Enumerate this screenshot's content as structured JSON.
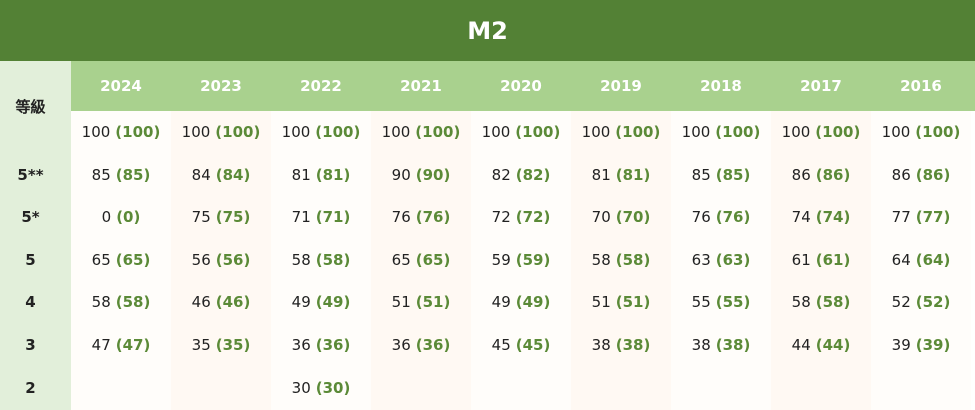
{
  "title": "M2",
  "grade_header": "等級",
  "years": [
    "2024",
    "2023",
    "2022",
    "2021",
    "2020",
    "2019",
    "2018",
    "2017",
    "2016"
  ],
  "grades": [
    "",
    "5**",
    "5*",
    "5",
    "4",
    "3",
    "2"
  ],
  "cells": [
    [
      [
        "100",
        "(100)"
      ],
      [
        "100",
        "(100)"
      ],
      [
        "100",
        "(100)"
      ],
      [
        "100",
        "(100)"
      ],
      [
        "100",
        "(100)"
      ],
      [
        "100",
        "(100)"
      ],
      [
        "100",
        "(100)"
      ],
      [
        "100",
        "(100)"
      ],
      [
        "100",
        "(100)"
      ]
    ],
    [
      [
        "85",
        "(85)"
      ],
      [
        "84",
        "(84)"
      ],
      [
        "81",
        "(81)"
      ],
      [
        "90",
        "(90)"
      ],
      [
        "82",
        "(82)"
      ],
      [
        "81",
        "(81)"
      ],
      [
        "85",
        "(85)"
      ],
      [
        "86",
        "(86)"
      ],
      [
        "86",
        "(86)"
      ]
    ],
    [
      [
        "0",
        "(0)"
      ],
      [
        "75",
        "(75)"
      ],
      [
        "71",
        "(71)"
      ],
      [
        "76",
        "(76)"
      ],
      [
        "72",
        "(72)"
      ],
      [
        "70",
        "(70)"
      ],
      [
        "76",
        "(76)"
      ],
      [
        "74",
        "(74)"
      ],
      [
        "77",
        "(77)"
      ]
    ],
    [
      [
        "65",
        "(65)"
      ],
      [
        "56",
        "(56)"
      ],
      [
        "58",
        "(58)"
      ],
      [
        "65",
        "(65)"
      ],
      [
        "59",
        "(59)"
      ],
      [
        "58",
        "(58)"
      ],
      [
        "63",
        "(63)"
      ],
      [
        "61",
        "(61)"
      ],
      [
        "64",
        "(64)"
      ]
    ],
    [
      [
        "58",
        "(58)"
      ],
      [
        "46",
        "(46)"
      ],
      [
        "49",
        "(49)"
      ],
      [
        "51",
        "(51)"
      ],
      [
        "49",
        "(49)"
      ],
      [
        "51",
        "(51)"
      ],
      [
        "55",
        "(55)"
      ],
      [
        "58",
        "(58)"
      ],
      [
        "52",
        "(52)"
      ]
    ],
    [
      [
        "47",
        "(47)"
      ],
      [
        "35",
        "(35)"
      ],
      [
        "36",
        "(36)"
      ],
      [
        "36",
        "(36)"
      ],
      [
        "45",
        "(45)"
      ],
      [
        "38",
        "(38)"
      ],
      [
        "38",
        "(38)"
      ],
      [
        "44",
        "(44)"
      ],
      [
        "39",
        "(39)"
      ]
    ],
    [
      [
        "",
        ""
      ],
      [
        "",
        ""
      ],
      [
        "30",
        "(30)"
      ],
      [
        "",
        ""
      ],
      [
        "",
        ""
      ],
      [
        "",
        ""
      ],
      [
        "",
        ""
      ],
      [
        "",
        ""
      ],
      [
        "",
        ""
      ]
    ]
  ]
}
